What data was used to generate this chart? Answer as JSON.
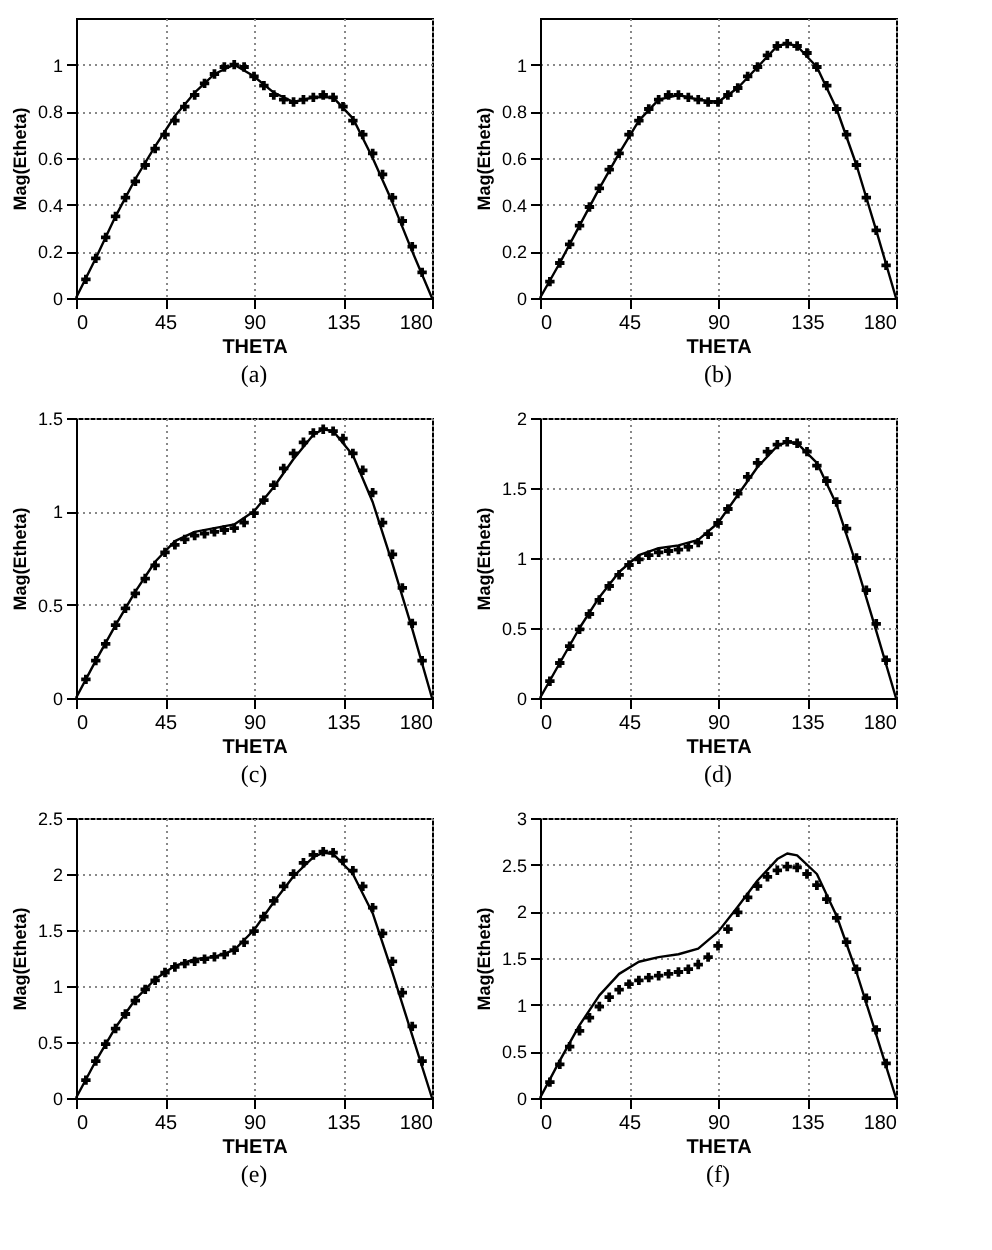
{
  "chart_data": [
    {
      "type": "line",
      "title": "(a)",
      "xlabel": "THETA",
      "ylabel": "Mag(Etheta)",
      "xlim": [
        0,
        180
      ],
      "xticks": [
        0,
        45,
        90,
        135,
        180
      ],
      "ylim": [
        0,
        1.2
      ],
      "yticks": [
        0,
        0.2,
        0.4,
        0.6,
        0.8,
        1
      ],
      "grid": true,
      "series": [
        {
          "color": "#000000",
          "line_style": "solid",
          "x": [
            0,
            10,
            20,
            30,
            40,
            50,
            60,
            70,
            80,
            90,
            100,
            110,
            120,
            130,
            140,
            150,
            160,
            170,
            180
          ],
          "values": [
            0,
            0.17,
            0.35,
            0.51,
            0.65,
            0.78,
            0.88,
            0.96,
            1.0,
            0.95,
            0.88,
            0.84,
            0.86,
            0.86,
            0.77,
            0.6,
            0.41,
            0.2,
            0
          ]
        },
        {
          "type": "scatter",
          "color": "#000000",
          "marker": "cross",
          "x": [
            5,
            10,
            15,
            20,
            25,
            30,
            35,
            40,
            45,
            50,
            55,
            60,
            65,
            70,
            75,
            80,
            85,
            90,
            95,
            100,
            105,
            110,
            115,
            120,
            125,
            130,
            135,
            140,
            145,
            150,
            155,
            160,
            165,
            170,
            175
          ],
          "values": [
            0.08,
            0.17,
            0.26,
            0.35,
            0.43,
            0.5,
            0.57,
            0.64,
            0.7,
            0.76,
            0.82,
            0.87,
            0.92,
            0.96,
            0.99,
            1.0,
            0.99,
            0.95,
            0.91,
            0.87,
            0.85,
            0.84,
            0.85,
            0.86,
            0.87,
            0.86,
            0.82,
            0.76,
            0.7,
            0.62,
            0.53,
            0.43,
            0.33,
            0.22,
            0.11
          ]
        }
      ]
    },
    {
      "type": "line",
      "title": "(b)",
      "xlabel": "THETA",
      "ylabel": "Mag(Etheta)",
      "xlim": [
        0,
        180
      ],
      "xticks": [
        0,
        45,
        90,
        135,
        180
      ],
      "ylim": [
        0,
        1.2
      ],
      "yticks": [
        0,
        0.2,
        0.4,
        0.6,
        0.8,
        1
      ],
      "grid": true,
      "series": [
        {
          "color": "#000000",
          "line_style": "solid",
          "x": [
            0,
            10,
            20,
            30,
            40,
            50,
            60,
            70,
            80,
            90,
            100,
            110,
            120,
            125,
            130,
            140,
            150,
            160,
            170,
            180
          ],
          "values": [
            0,
            0.15,
            0.31,
            0.47,
            0.62,
            0.76,
            0.85,
            0.87,
            0.85,
            0.84,
            0.9,
            0.99,
            1.08,
            1.09,
            1.08,
            0.99,
            0.81,
            0.57,
            0.29,
            0
          ]
        },
        {
          "type": "scatter",
          "color": "#000000",
          "marker": "cross",
          "x": [
            5,
            10,
            15,
            20,
            25,
            30,
            35,
            40,
            45,
            50,
            55,
            60,
            65,
            70,
            75,
            80,
            85,
            90,
            95,
            100,
            105,
            110,
            115,
            120,
            125,
            130,
            135,
            140,
            145,
            150,
            155,
            160,
            165,
            170,
            175
          ],
          "values": [
            0.07,
            0.15,
            0.23,
            0.31,
            0.39,
            0.47,
            0.55,
            0.62,
            0.7,
            0.76,
            0.81,
            0.85,
            0.87,
            0.87,
            0.86,
            0.85,
            0.84,
            0.84,
            0.87,
            0.9,
            0.95,
            0.99,
            1.04,
            1.08,
            1.09,
            1.08,
            1.05,
            0.99,
            0.91,
            0.81,
            0.7,
            0.57,
            0.43,
            0.29,
            0.14
          ]
        }
      ]
    },
    {
      "type": "line",
      "title": "(c)",
      "xlabel": "THETA",
      "ylabel": "Mag(Etheta)",
      "xlim": [
        0,
        180
      ],
      "xticks": [
        0,
        45,
        90,
        135,
        180
      ],
      "ylim": [
        0,
        1.5
      ],
      "yticks": [
        0,
        0.5,
        1,
        1.5
      ],
      "grid": true,
      "series": [
        {
          "color": "#000000",
          "line_style": "solid",
          "x": [
            0,
            10,
            20,
            30,
            40,
            50,
            60,
            70,
            80,
            90,
            100,
            110,
            120,
            125,
            130,
            140,
            150,
            160,
            170,
            180
          ],
          "values": [
            0,
            0.2,
            0.39,
            0.57,
            0.73,
            0.84,
            0.89,
            0.91,
            0.93,
            1.0,
            1.13,
            1.28,
            1.41,
            1.44,
            1.43,
            1.3,
            1.05,
            0.72,
            0.37,
            0
          ]
        },
        {
          "type": "scatter",
          "color": "#000000",
          "marker": "cross",
          "x": [
            5,
            10,
            15,
            20,
            25,
            30,
            35,
            40,
            45,
            50,
            55,
            60,
            65,
            70,
            75,
            80,
            85,
            90,
            95,
            100,
            105,
            110,
            115,
            120,
            125,
            130,
            135,
            140,
            145,
            150,
            155,
            160,
            165,
            170,
            175
          ],
          "values": [
            0.1,
            0.2,
            0.29,
            0.39,
            0.48,
            0.56,
            0.64,
            0.71,
            0.78,
            0.82,
            0.85,
            0.87,
            0.88,
            0.89,
            0.9,
            0.91,
            0.94,
            0.99,
            1.06,
            1.14,
            1.23,
            1.31,
            1.37,
            1.42,
            1.44,
            1.43,
            1.39,
            1.31,
            1.22,
            1.1,
            0.94,
            0.77,
            0.59,
            0.4,
            0.2
          ]
        }
      ]
    },
    {
      "type": "line",
      "title": "(d)",
      "xlabel": "THETA",
      "ylabel": "Mag(Etheta)",
      "xlim": [
        0,
        180
      ],
      "xticks": [
        0,
        45,
        90,
        135,
        180
      ],
      "ylim": [
        0,
        2
      ],
      "yticks": [
        0,
        0.5,
        1,
        1.5,
        2
      ],
      "grid": true,
      "series": [
        {
          "color": "#000000",
          "line_style": "solid",
          "x": [
            0,
            10,
            20,
            30,
            40,
            50,
            60,
            70,
            80,
            90,
            100,
            110,
            120,
            125,
            130,
            140,
            150,
            160,
            170,
            180
          ],
          "values": [
            0,
            0.25,
            0.5,
            0.72,
            0.9,
            1.02,
            1.07,
            1.09,
            1.13,
            1.25,
            1.45,
            1.65,
            1.8,
            1.83,
            1.82,
            1.68,
            1.38,
            0.95,
            0.48,
            0
          ]
        },
        {
          "type": "scatter",
          "color": "#000000",
          "marker": "cross",
          "x": [
            5,
            10,
            15,
            20,
            25,
            30,
            35,
            40,
            45,
            50,
            55,
            60,
            65,
            70,
            75,
            80,
            85,
            90,
            95,
            100,
            105,
            110,
            115,
            120,
            125,
            130,
            135,
            140,
            145,
            150,
            155,
            160,
            165,
            170,
            175
          ],
          "values": [
            0.12,
            0.25,
            0.37,
            0.49,
            0.6,
            0.7,
            0.8,
            0.88,
            0.95,
            0.99,
            1.02,
            1.04,
            1.05,
            1.06,
            1.08,
            1.11,
            1.17,
            1.25,
            1.35,
            1.46,
            1.58,
            1.68,
            1.76,
            1.81,
            1.83,
            1.82,
            1.76,
            1.66,
            1.55,
            1.4,
            1.21,
            1.0,
            0.77,
            0.53,
            0.27
          ]
        }
      ]
    },
    {
      "type": "line",
      "title": "(e)",
      "xlabel": "THETA",
      "ylabel": "Mag(Etheta)",
      "xlim": [
        0,
        180
      ],
      "xticks": [
        0,
        45,
        90,
        135,
        180
      ],
      "ylim": [
        0,
        2.5
      ],
      "yticks": [
        0,
        0.5,
        1,
        1.5,
        2,
        2.5
      ],
      "grid": true,
      "series": [
        {
          "color": "#000000",
          "line_style": "solid",
          "x": [
            0,
            10,
            20,
            30,
            40,
            50,
            60,
            70,
            80,
            90,
            100,
            110,
            120,
            125,
            130,
            140,
            150,
            160,
            170,
            180
          ],
          "values": [
            0,
            0.33,
            0.63,
            0.88,
            1.06,
            1.18,
            1.24,
            1.26,
            1.32,
            1.5,
            1.75,
            1.98,
            2.15,
            2.19,
            2.18,
            2.0,
            1.65,
            1.12,
            0.56,
            0
          ]
        },
        {
          "type": "scatter",
          "color": "#000000",
          "marker": "cross",
          "x": [
            5,
            10,
            15,
            20,
            25,
            30,
            35,
            40,
            45,
            50,
            55,
            60,
            65,
            70,
            75,
            80,
            85,
            90,
            95,
            100,
            105,
            110,
            115,
            120,
            125,
            130,
            135,
            140,
            145,
            150,
            155,
            160,
            165,
            170,
            175
          ],
          "values": [
            0.16,
            0.33,
            0.48,
            0.62,
            0.75,
            0.87,
            0.97,
            1.05,
            1.12,
            1.17,
            1.2,
            1.22,
            1.24,
            1.26,
            1.28,
            1.32,
            1.39,
            1.49,
            1.62,
            1.76,
            1.89,
            2.0,
            2.1,
            2.17,
            2.2,
            2.19,
            2.12,
            2.03,
            1.89,
            1.7,
            1.47,
            1.22,
            0.94,
            0.64,
            0.33
          ]
        }
      ]
    },
    {
      "type": "line",
      "title": "(f)",
      "xlabel": "THETA",
      "ylabel": "Mag(Etheta)",
      "xlim": [
        0,
        180
      ],
      "xticks": [
        0,
        45,
        90,
        135,
        180
      ],
      "ylim": [
        0,
        3
      ],
      "yticks": [
        0,
        0.5,
        1,
        1.5,
        2,
        2.5,
        3
      ],
      "grid": true,
      "series": [
        {
          "color": "#000000",
          "line_style": "solid",
          "x": [
            0,
            10,
            20,
            30,
            40,
            50,
            60,
            70,
            80,
            90,
            100,
            110,
            120,
            125,
            130,
            140,
            150,
            160,
            170,
            180
          ],
          "values": [
            0,
            0.4,
            0.78,
            1.1,
            1.33,
            1.46,
            1.51,
            1.54,
            1.6,
            1.78,
            2.05,
            2.33,
            2.56,
            2.62,
            2.6,
            2.4,
            1.95,
            1.35,
            0.68,
            0
          ]
        },
        {
          "type": "scatter",
          "color": "#000000",
          "marker": "cross",
          "x": [
            5,
            10,
            15,
            20,
            25,
            30,
            35,
            40,
            45,
            50,
            55,
            60,
            65,
            70,
            75,
            80,
            85,
            90,
            95,
            100,
            105,
            110,
            115,
            120,
            125,
            130,
            135,
            140,
            145,
            150,
            155,
            160,
            165,
            170,
            175
          ],
          "values": [
            0.17,
            0.36,
            0.55,
            0.72,
            0.86,
            0.98,
            1.08,
            1.16,
            1.22,
            1.26,
            1.29,
            1.31,
            1.33,
            1.35,
            1.38,
            1.43,
            1.51,
            1.63,
            1.81,
            1.99,
            2.15,
            2.27,
            2.37,
            2.44,
            2.48,
            2.47,
            2.4,
            2.28,
            2.13,
            1.93,
            1.67,
            1.38,
            1.07,
            0.73,
            0.37
          ]
        }
      ]
    }
  ]
}
